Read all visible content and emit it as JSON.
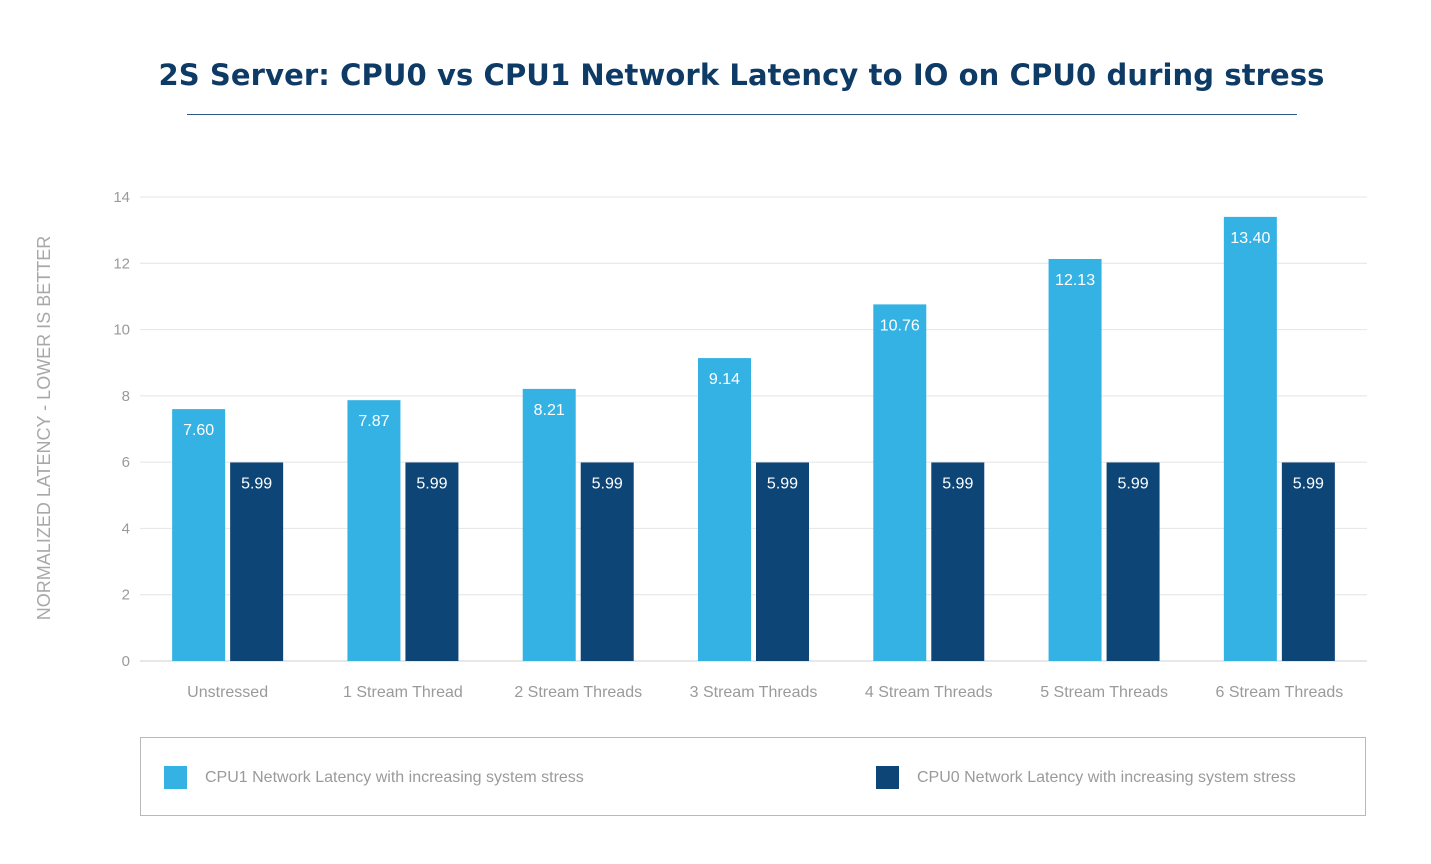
{
  "chart_data": {
    "type": "bar",
    "title": "2S Server: CPU0 vs CPU1 Network Latency to IO on CPU0 during stress",
    "ylabel": "NORMALIZED LATENCY - LOWER IS BETTER",
    "xlabel": "",
    "ylim": [
      0,
      14
    ],
    "yticks": [
      0,
      2,
      4,
      6,
      8,
      10,
      12,
      14
    ],
    "grid": true,
    "legend_position": "bottom",
    "categories": [
      "Unstressed",
      "1 Stream Thread",
      "2 Stream Threads",
      "3 Stream Threads",
      "4 Stream Threads",
      "5 Stream Threads",
      "6 Stream Threads"
    ],
    "series": [
      {
        "name": "CPU1 Network Latency with increasing system stress",
        "color": "#35b2e4",
        "values": [
          7.6,
          7.87,
          8.21,
          9.14,
          10.76,
          12.13,
          13.4
        ],
        "labels": [
          "7.60",
          "7.87",
          "8.21",
          "9.14",
          "10.76",
          "12.13",
          "13.40"
        ]
      },
      {
        "name": "CPU0 Network Latency with increasing system stress",
        "color": "#0e4577",
        "values": [
          5.99,
          5.99,
          5.99,
          5.99,
          5.99,
          5.99,
          5.99
        ],
        "labels": [
          "5.99",
          "5.99",
          "5.99",
          "5.99",
          "5.99",
          "5.99",
          "5.99"
        ]
      }
    ]
  }
}
